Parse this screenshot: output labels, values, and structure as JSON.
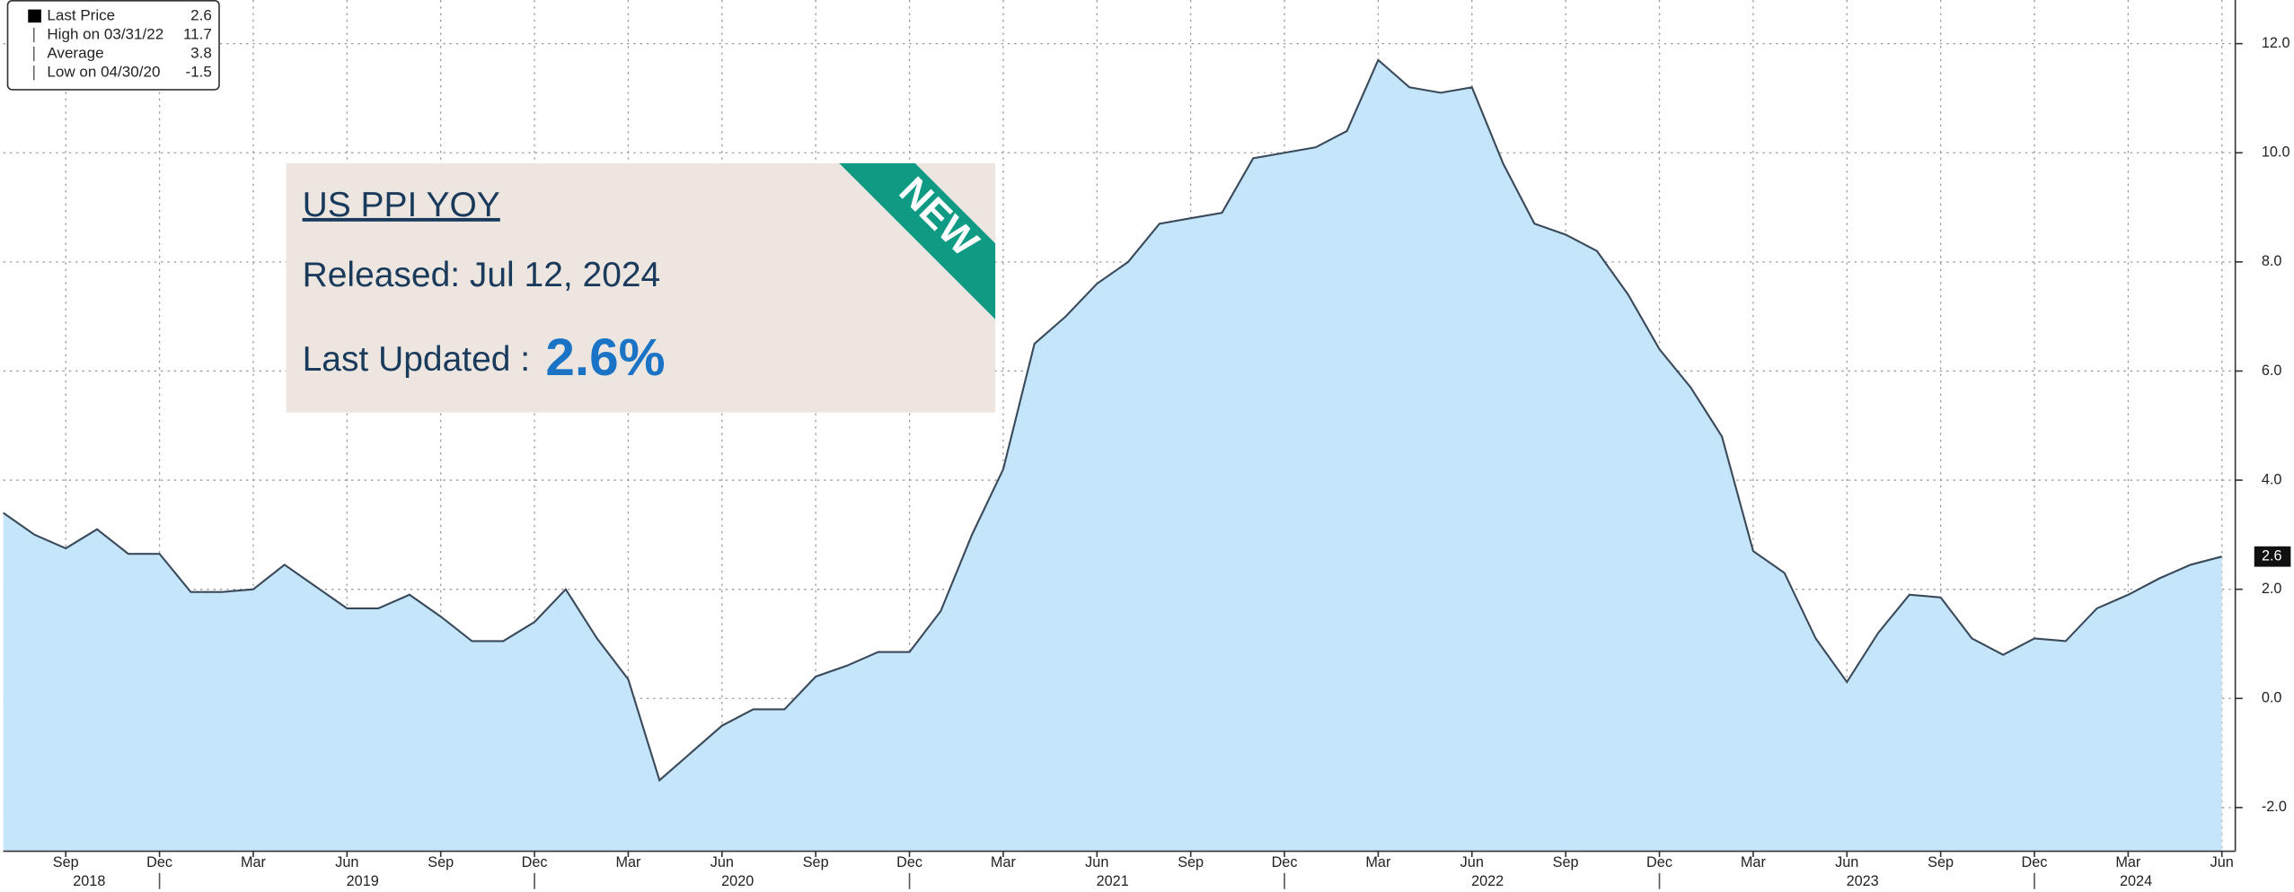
{
  "chart_data": {
    "type": "area",
    "color": "#c5e5fb",
    "line_color": "#3a4a5a",
    "categories": [
      null,
      null,
      "Sep",
      null,
      null,
      "Dec",
      null,
      null,
      "Mar",
      null,
      null,
      "Jun",
      null,
      null,
      "Sep",
      null,
      null,
      "Dec",
      null,
      null,
      "Mar",
      null,
      null,
      "Jun",
      null,
      null,
      "Sep",
      null,
      null,
      "Dec",
      null,
      null,
      "Mar",
      null,
      null,
      "Jun",
      null,
      null,
      "Sep",
      null,
      null,
      "Dec",
      null,
      null,
      "Mar",
      null,
      null,
      "Jun",
      null,
      null,
      "Sep",
      null,
      null,
      "Dec",
      null,
      null,
      "Mar",
      null,
      null,
      "Jun",
      null,
      null,
      "Sep",
      null,
      null,
      "Dec",
      null,
      null,
      "Mar",
      null,
      null,
      "Jun"
    ],
    "years": [
      "2018",
      "2019",
      "2020",
      "2021",
      "2022",
      "2023",
      "2024"
    ],
    "values": [
      3.4,
      3.0,
      2.75,
      3.1,
      2.65,
      2.65,
      1.95,
      1.95,
      2.0,
      2.45,
      2.05,
      1.65,
      1.65,
      1.9,
      1.5,
      1.05,
      1.05,
      1.4,
      2.0,
      1.1,
      0.35,
      -1.5,
      -1.0,
      -0.5,
      -0.2,
      -0.2,
      0.4,
      0.6,
      0.85,
      0.85,
      1.6,
      3.0,
      4.2,
      6.5,
      7.0,
      7.6,
      8.0,
      8.7,
      8.8,
      8.9,
      9.9,
      10.0,
      10.1,
      10.4,
      11.7,
      11.2,
      11.1,
      11.2,
      9.8,
      8.7,
      8.5,
      8.2,
      7.4,
      6.4,
      5.7,
      4.8,
      2.7,
      2.3,
      1.1,
      0.3,
      1.2,
      1.9,
      1.85,
      1.1,
      0.8,
      1.1,
      1.05,
      1.65,
      1.9,
      2.2,
      2.45,
      2.6
    ],
    "ylim": [
      -2.8,
      12.8
    ],
    "yticks": [
      {
        "value": -2,
        "label": "-2.0"
      },
      {
        "value": 0,
        "label": "0.0"
      },
      {
        "value": 2,
        "label": "2.0"
      },
      {
        "value": 4,
        "label": "4.0"
      },
      {
        "value": 6,
        "label": "6.0"
      },
      {
        "value": 8,
        "label": "8.0"
      },
      {
        "value": 10,
        "label": "10.0"
      },
      {
        "value": 12,
        "label": "12.0"
      }
    ],
    "grid": true,
    "legend": [
      {
        "label": "Last Price",
        "value": 2.6
      },
      {
        "label": "High on 03/31/22",
        "value": 11.7
      },
      {
        "label": "Average",
        "value": 3.8
      },
      {
        "label": "Low on 04/30/20",
        "value": -1.5
      }
    ],
    "annotation": {
      "title": "US PPI YOY",
      "released": "Released: Jul 12, 2024",
      "updated": "Last Updated : ",
      "updated_value": "2.6%",
      "badge": "NEW"
    }
  }
}
